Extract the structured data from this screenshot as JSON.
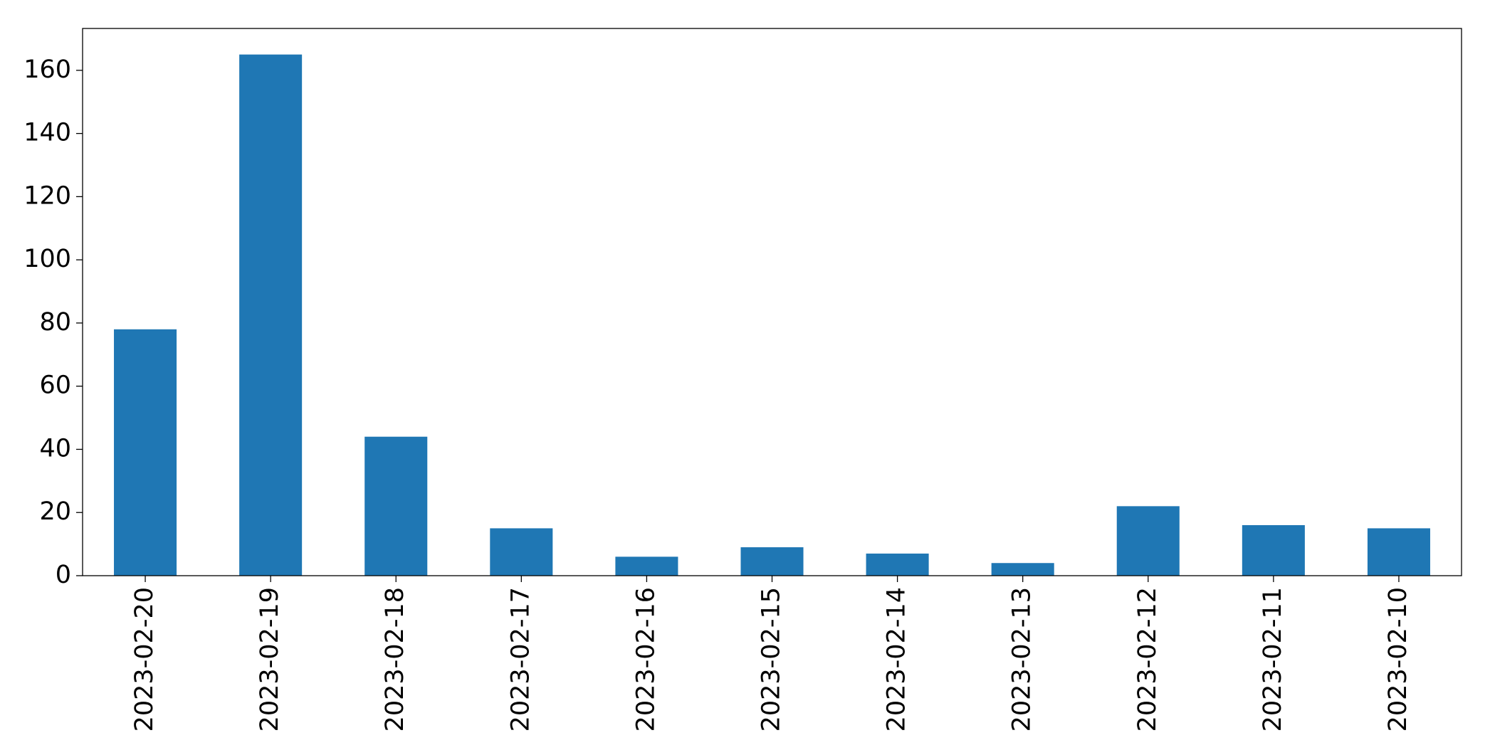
{
  "chart_data": {
    "type": "bar",
    "categories": [
      "2023-02-20",
      "2023-02-19",
      "2023-02-18",
      "2023-02-17",
      "2023-02-16",
      "2023-02-15",
      "2023-02-14",
      "2023-02-13",
      "2023-02-12",
      "2023-02-11",
      "2023-02-10"
    ],
    "values": [
      78,
      165,
      44,
      15,
      6,
      9,
      7,
      4,
      22,
      16,
      15
    ],
    "color": "#1f77b4",
    "ylim": [
      0,
      173.25
    ],
    "yticks": [
      0,
      20,
      40,
      60,
      80,
      100,
      120,
      140,
      160
    ],
    "grid": false
  }
}
